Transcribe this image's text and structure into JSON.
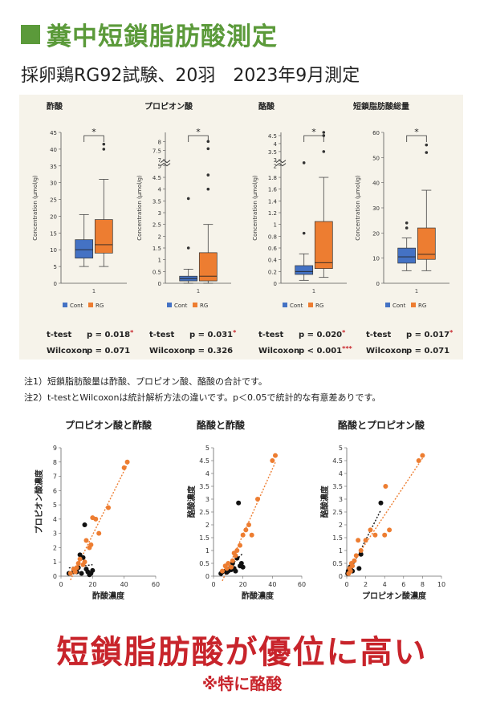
{
  "header": {
    "title": "糞中短鎖脂肪酸測定",
    "subtitle": "採卵鶏RG92試験、20羽　2023年9月測定"
  },
  "colors": {
    "green": "#5b9a3a",
    "cont": "#4472c4",
    "rg": "#ed7d31",
    "red": "#c8242b"
  },
  "chart_data": [
    {
      "type": "box",
      "title": "酢酸",
      "ylabel": "Concentration (μmol/g)",
      "ylim": [
        0,
        45
      ],
      "yticks": [
        0,
        5,
        10,
        15,
        20,
        25,
        30,
        35,
        40,
        45
      ],
      "xtick": "1",
      "significance": "*",
      "series": [
        {
          "name": "Cont",
          "whisker_low": 5,
          "q1": 7.5,
          "median": 10,
          "q3": 13,
          "whisker_high": 20.5,
          "outliers": []
        },
        {
          "name": "RG",
          "whisker_low": 5,
          "q1": 9,
          "median": 11.5,
          "q3": 19,
          "whisker_high": 31,
          "outliers": [
            40,
            41.5
          ]
        }
      ],
      "tests": [
        {
          "name": "t-test",
          "p": "p = 0.018",
          "stars": "*"
        },
        {
          "name": "Wilcoxon",
          "p": "p = 0.071",
          "stars": ""
        }
      ]
    },
    {
      "type": "box",
      "title": "プロピオン酸",
      "ylabel": "Concentration (μmol/g)",
      "ylim": [
        0,
        8.5
      ],
      "yticks": [
        0,
        0.5,
        1,
        1.5,
        2,
        2.5,
        3,
        3.5,
        4,
        4.5,
        5,
        7,
        7.5,
        8
      ],
      "axis_break": true,
      "xtick": "1",
      "significance": "*",
      "series": [
        {
          "name": "Cont",
          "whisker_low": 0,
          "q1": 0.1,
          "median": 0.2,
          "q3": 0.3,
          "whisker_high": 0.6,
          "outliers": [
            1.5,
            3.6
          ]
        },
        {
          "name": "RG",
          "whisker_low": 0,
          "q1": 0.1,
          "median": 0.3,
          "q3": 1.3,
          "whisker_high": 2.5,
          "outliers": [
            4,
            4.6,
            7.6,
            8
          ]
        }
      ],
      "tests": [
        {
          "name": "t-test",
          "p": "p = 0.031",
          "stars": "*"
        },
        {
          "name": "Wilcoxon",
          "p": "p = 0.326",
          "stars": ""
        }
      ]
    },
    {
      "type": "box",
      "title": "酪酸",
      "ylabel": "Concentration (μmol/g)",
      "ylim": [
        0,
        4.7
      ],
      "yticks": [
        0,
        0.2,
        0.4,
        0.6,
        0.8,
        1,
        1.2,
        1.4,
        1.6,
        1.8,
        2,
        3,
        3.5,
        4,
        4.5
      ],
      "axis_break": true,
      "xtick": "1",
      "significance": "*",
      "series": [
        {
          "name": "Cont",
          "whisker_low": 0.05,
          "q1": 0.15,
          "median": 0.2,
          "q3": 0.3,
          "whisker_high": 0.5,
          "outliers": [
            0.85,
            2.8
          ]
        },
        {
          "name": "RG",
          "whisker_low": 0.1,
          "q1": 0.25,
          "median": 0.35,
          "q3": 1.05,
          "whisker_high": 1.8,
          "outliers": [
            3.5,
            4.5,
            4.7
          ]
        }
      ],
      "tests": [
        {
          "name": "t-test",
          "p": "p = 0.020",
          "stars": "*"
        },
        {
          "name": "Wilcoxon",
          "p": "p < 0.001",
          "stars": "***"
        }
      ]
    },
    {
      "type": "box",
      "title": "短鎖脂肪酸総量",
      "ylabel": "Concentration (μmol/g)",
      "ylim": [
        0,
        60
      ],
      "yticks": [
        0,
        10,
        20,
        30,
        40,
        50,
        60
      ],
      "xtick": "1",
      "significance": "*",
      "series": [
        {
          "name": "Cont",
          "whisker_low": 5,
          "q1": 8,
          "median": 10.5,
          "q3": 14,
          "whisker_high": 18,
          "outliers": [
            22,
            24
          ]
        },
        {
          "name": "RG",
          "whisker_low": 5,
          "q1": 9.5,
          "median": 11.5,
          "q3": 22,
          "whisker_high": 37,
          "outliers": [
            52,
            55
          ]
        }
      ],
      "tests": [
        {
          "name": "t-test",
          "p": "p = 0.017",
          "stars": "*"
        },
        {
          "name": "Wilcoxon",
          "p": "p = 0.071",
          "stars": ""
        }
      ]
    },
    {
      "type": "scatter",
      "title": "プロピオン酸と酢酸",
      "xlabel": "酢酸濃度",
      "ylabel": "プロピオン酸濃度",
      "xlim": [
        0,
        60
      ],
      "ylim": [
        0,
        9
      ],
      "xticks": [
        0,
        20,
        40,
        60
      ],
      "yticks": [
        0,
        1,
        2,
        3,
        4,
        5,
        6,
        7,
        8,
        9
      ],
      "series": [
        {
          "name": "Cont",
          "points": [
            [
              5,
              0.2
            ],
            [
              8,
              0.3
            ],
            [
              9,
              0.4
            ],
            [
              10,
              0.3
            ],
            [
              11,
              0.6
            ],
            [
              12,
              1.5
            ],
            [
              13,
              0.2
            ],
            [
              14,
              1.3
            ],
            [
              15,
              3.6
            ],
            [
              16,
              0.5
            ],
            [
              17,
              0.3
            ],
            [
              18,
              0.1
            ],
            [
              19,
              0.2
            ],
            [
              20,
              0.4
            ]
          ]
        },
        {
          "name": "RG",
          "points": [
            [
              6,
              0.2
            ],
            [
              8,
              0.5
            ],
            [
              9,
              0.3
            ],
            [
              10,
              0.6
            ],
            [
              11,
              0.9
            ],
            [
              12,
              1.2
            ],
            [
              14,
              0.8
            ],
            [
              15,
              1.0
            ],
            [
              16,
              2.5
            ],
            [
              18,
              2.0
            ],
            [
              19,
              2.2
            ],
            [
              20,
              4.1
            ],
            [
              22,
              4.0
            ],
            [
              24,
              3.0
            ],
            [
              30,
              4.8
            ],
            [
              40,
              7.6
            ],
            [
              42,
              8.0
            ]
          ]
        }
      ]
    },
    {
      "type": "scatter",
      "title": "酪酸と酢酸",
      "xlabel": "酢酸濃度",
      "ylabel": "酪酸濃度",
      "xlim": [
        0,
        60
      ],
      "ylim": [
        0,
        5
      ],
      "xticks": [
        0,
        20,
        40,
        60
      ],
      "yticks": [
        0,
        0.5,
        1,
        1.5,
        2,
        2.5,
        3,
        3.5,
        4,
        4.5,
        5
      ],
      "series": [
        {
          "name": "Cont",
          "points": [
            [
              5,
              0.1
            ],
            [
              8,
              0.2
            ],
            [
              9,
              0.15
            ],
            [
              10,
              0.2
            ],
            [
              11,
              0.3
            ],
            [
              12,
              0.25
            ],
            [
              13,
              0.5
            ],
            [
              14,
              0.3
            ],
            [
              15,
              0.2
            ],
            [
              16,
              0.7
            ],
            [
              17,
              2.85
            ],
            [
              18,
              0.4
            ],
            [
              19,
              0.5
            ],
            [
              20,
              0.35
            ]
          ]
        },
        {
          "name": "RG",
          "points": [
            [
              6,
              0.2
            ],
            [
              8,
              0.4
            ],
            [
              9,
              0.3
            ],
            [
              10,
              0.5
            ],
            [
              12,
              0.35
            ],
            [
              13,
              0.6
            ],
            [
              14,
              0.9
            ],
            [
              15,
              0.8
            ],
            [
              16,
              1.0
            ],
            [
              18,
              1.2
            ],
            [
              20,
              1.6
            ],
            [
              22,
              1.8
            ],
            [
              24,
              2.0
            ],
            [
              26,
              1.6
            ],
            [
              30,
              3.0
            ],
            [
              40,
              4.5
            ],
            [
              42,
              4.7
            ]
          ]
        }
      ]
    },
    {
      "type": "scatter",
      "title": "酪酸とプロピオン酸",
      "xlabel": "プロピオン酸濃度",
      "ylabel": "酪酸濃度",
      "xlim": [
        0,
        10
      ],
      "ylim": [
        0,
        5
      ],
      "xticks": [
        0,
        2,
        4,
        6,
        8,
        10
      ],
      "yticks": [
        0,
        0.5,
        1,
        1.5,
        2,
        2.5,
        3,
        3.5,
        4,
        4.5,
        5
      ],
      "series": [
        {
          "name": "Cont",
          "points": [
            [
              0.1,
              0.1
            ],
            [
              0.15,
              0.2
            ],
            [
              0.2,
              0.15
            ],
            [
              0.25,
              0.25
            ],
            [
              0.3,
              0.2
            ],
            [
              0.35,
              0.35
            ],
            [
              0.4,
              0.3
            ],
            [
              0.5,
              0.4
            ],
            [
              0.6,
              0.2
            ],
            [
              1.5,
              0.85
            ],
            [
              1.3,
              0.3
            ],
            [
              3.6,
              2.85
            ]
          ]
        },
        {
          "name": "RG",
          "points": [
            [
              0.2,
              0.1
            ],
            [
              0.3,
              0.3
            ],
            [
              0.4,
              0.2
            ],
            [
              0.5,
              0.5
            ],
            [
              0.6,
              0.4
            ],
            [
              0.8,
              0.6
            ],
            [
              1.0,
              0.8
            ],
            [
              1.2,
              1.4
            ],
            [
              1.5,
              1.0
            ],
            [
              2.0,
              1.4
            ],
            [
              2.5,
              1.8
            ],
            [
              3.0,
              1.6
            ],
            [
              4.0,
              1.6
            ],
            [
              4.5,
              1.8
            ],
            [
              4.1,
              3.5
            ],
            [
              7.6,
              4.5
            ],
            [
              8.0,
              4.7
            ]
          ]
        }
      ]
    }
  ],
  "notes": [
    "注1）短鎖脂肪酸量は酢酸、プロピオン酸、酪酸の合計です。",
    "注2）t-testとWilcoxonは統計解析方法の違いです。p＜0.05で統計的な有意差ありです。"
  ],
  "headline": "短鎖脂肪酸が優位に高い",
  "subline": "※特に酪酸"
}
